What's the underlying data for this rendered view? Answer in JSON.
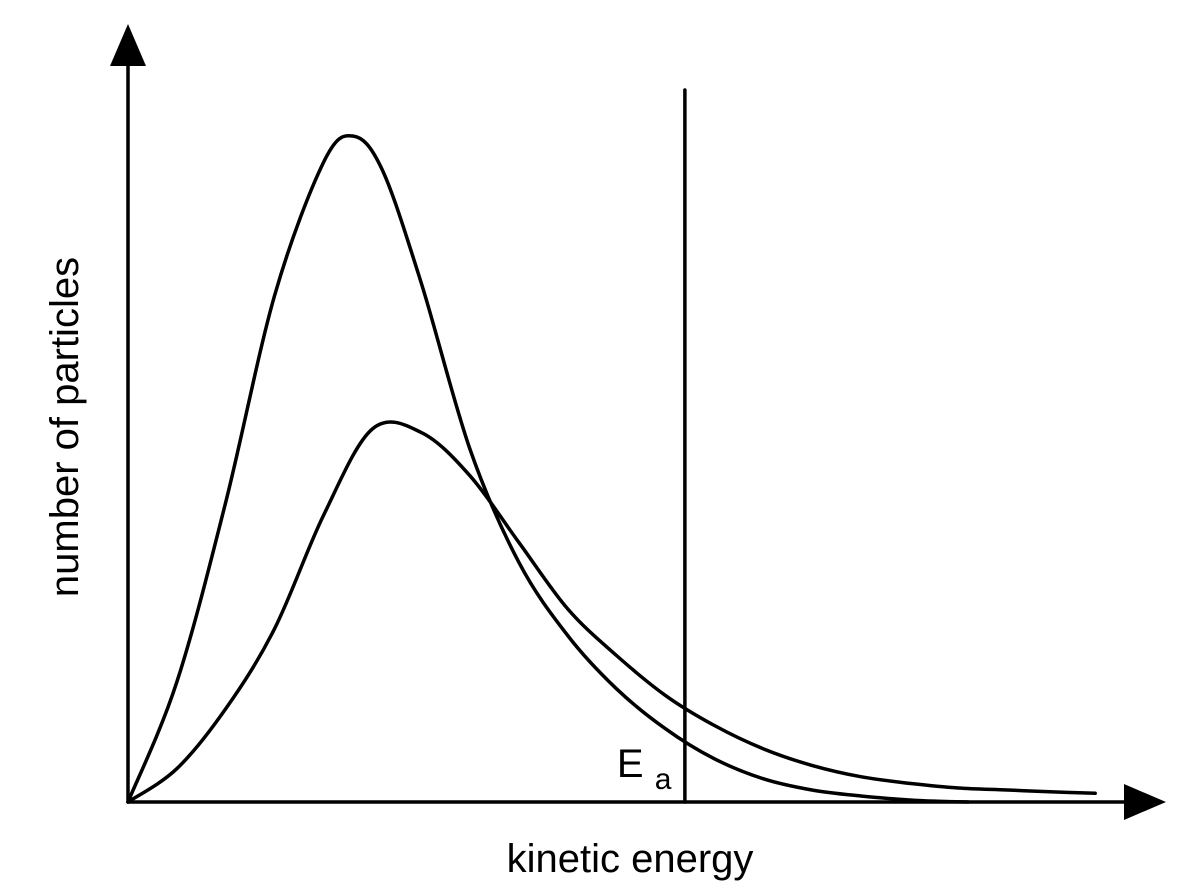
{
  "chart_data": {
    "type": "line",
    "xlabel": "kinetic energy",
    "ylabel": "number of particles",
    "xlim": [
      0,
      100
    ],
    "ylim": [
      0,
      100
    ],
    "grid": false,
    "series": [
      {
        "x": [
          0,
          5,
          10,
          15,
          20,
          23,
          26,
          30,
          35,
          40,
          45,
          50,
          55,
          60,
          65,
          70,
          75,
          80,
          83,
          86
        ],
        "y": [
          0,
          18,
          45,
          76,
          96,
          100,
          95,
          78,
          53,
          36,
          25,
          17,
          11,
          6.5,
          3.5,
          1.8,
          0.9,
          0.3,
          0.1,
          0
        ]
      },
      {
        "x": [
          0,
          5,
          10,
          15,
          20,
          25,
          30,
          35,
          40,
          45,
          50,
          55,
          60,
          65,
          70,
          75,
          80,
          85,
          90,
          95,
          99
        ],
        "y": [
          0,
          5,
          14,
          26,
          43,
          56,
          55.5,
          49,
          39,
          29,
          22,
          16,
          11.5,
          8,
          5.5,
          3.8,
          2.8,
          2.1,
          1.8,
          1.5,
          1.3
        ]
      }
    ],
    "annotations": [
      {
        "type": "vertical-line",
        "x": 57,
        "label": "E",
        "label_subscript": "a"
      }
    ]
  }
}
